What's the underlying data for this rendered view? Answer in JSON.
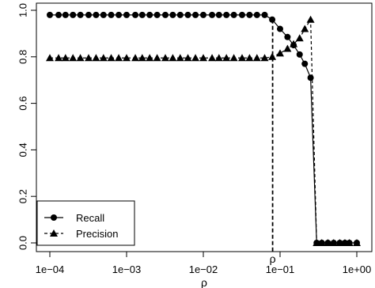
{
  "chart_data": {
    "type": "line",
    "xlabel": "ρ",
    "ylabel": "",
    "x_scale": "log10",
    "xlim": [
      0.0001,
      1
    ],
    "ylim": [
      0,
      1
    ],
    "x_ticks": [
      0.0001,
      0.001,
      0.01,
      0.1,
      1
    ],
    "x_tick_labels": [
      "1e−04",
      "1e−03",
      "1e−02",
      "1e−01",
      "1e+00"
    ],
    "y_ticks": [
      0,
      0.2,
      0.4,
      0.6,
      0.8,
      1
    ],
    "y_tick_labels": [
      "0.0",
      "0.2",
      "0.4",
      "0.6",
      "0.8",
      "1.0"
    ],
    "vline": {
      "x": 0.08,
      "label": "ρ"
    },
    "legend_position": "bottom-left",
    "series": [
      {
        "name": "Recall",
        "marker": "circle",
        "line": "solid",
        "x": [
          0.0001,
          0.00013,
          0.00016,
          0.0002,
          0.00025,
          0.00032,
          0.0004,
          0.0005,
          0.00063,
          0.00079,
          0.001,
          0.0013,
          0.0016,
          0.002,
          0.0025,
          0.0032,
          0.004,
          0.005,
          0.0063,
          0.0079,
          0.01,
          0.013,
          0.016,
          0.02,
          0.025,
          0.032,
          0.04,
          0.05,
          0.063,
          0.079,
          0.1,
          0.125,
          0.15,
          0.18,
          0.21,
          0.25,
          0.3,
          0.35,
          0.42,
          0.5,
          0.6,
          0.7,
          0.8,
          1.0
        ],
        "y": [
          0.98,
          0.98,
          0.98,
          0.98,
          0.98,
          0.98,
          0.98,
          0.98,
          0.98,
          0.98,
          0.98,
          0.98,
          0.98,
          0.98,
          0.98,
          0.98,
          0.98,
          0.98,
          0.98,
          0.98,
          0.98,
          0.98,
          0.98,
          0.98,
          0.98,
          0.98,
          0.98,
          0.98,
          0.98,
          0.96,
          0.92,
          0.885,
          0.85,
          0.81,
          0.77,
          0.71,
          0.0,
          0.0,
          0.0,
          0.0,
          0.0,
          0.0,
          0.0,
          0.0
        ]
      },
      {
        "name": "Precision",
        "marker": "triangle",
        "line": "dashed",
        "x": [
          0.0001,
          0.00013,
          0.00016,
          0.0002,
          0.00025,
          0.00032,
          0.0004,
          0.0005,
          0.00063,
          0.00079,
          0.001,
          0.0013,
          0.0016,
          0.002,
          0.0025,
          0.0032,
          0.004,
          0.005,
          0.0063,
          0.0079,
          0.01,
          0.013,
          0.016,
          0.02,
          0.025,
          0.032,
          0.04,
          0.05,
          0.063,
          0.079,
          0.1,
          0.125,
          0.15,
          0.18,
          0.21,
          0.25,
          0.3,
          0.35,
          0.42,
          0.5,
          0.6,
          0.7,
          0.8,
          1.0
        ],
        "y": [
          0.795,
          0.795,
          0.795,
          0.795,
          0.795,
          0.795,
          0.795,
          0.795,
          0.795,
          0.795,
          0.795,
          0.795,
          0.795,
          0.795,
          0.795,
          0.795,
          0.795,
          0.795,
          0.795,
          0.795,
          0.795,
          0.795,
          0.795,
          0.795,
          0.795,
          0.795,
          0.795,
          0.795,
          0.795,
          0.8,
          0.815,
          0.835,
          0.855,
          0.88,
          0.92,
          0.96,
          0.0,
          0.0,
          0.0,
          0.0,
          0.0,
          0.0,
          0.0,
          0.0
        ]
      }
    ]
  }
}
